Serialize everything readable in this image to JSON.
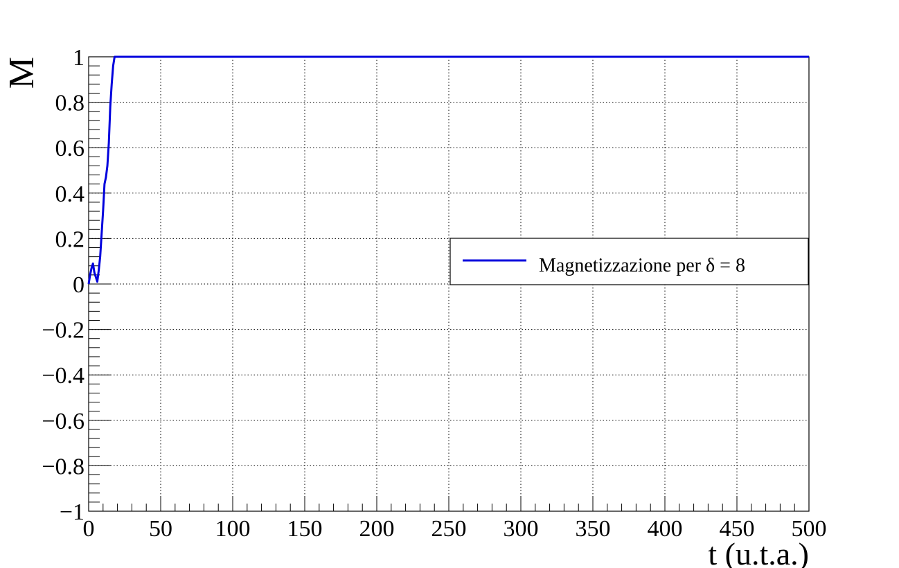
{
  "chart_data": {
    "type": "line",
    "xlabel": "t (u.t.a.)",
    "ylabel": "M",
    "xlim": [
      0,
      500
    ],
    "ylim": [
      -1,
      1
    ],
    "grid": true,
    "grid_style": "dotted",
    "legend_position": "right-middle",
    "x_ticks": [
      0,
      50,
      100,
      150,
      200,
      250,
      300,
      350,
      400,
      450,
      500
    ],
    "x_tick_labels": [
      "0",
      "50",
      "100",
      "150",
      "200",
      "250",
      "300",
      "350",
      "400",
      "450",
      "500"
    ],
    "y_ticks": [
      -1,
      -0.8,
      -0.6,
      -0.4,
      -0.2,
      0,
      0.2,
      0.4,
      0.6,
      0.8,
      1
    ],
    "y_tick_labels": [
      "−1",
      "−0.8",
      "−0.6",
      "−0.4",
      "−0.2",
      "0",
      "0.2",
      "0.4",
      "0.6",
      "0.8",
      "1"
    ],
    "series": [
      {
        "name": "Magnetizzazione per δ = 8",
        "color": "#0000dd",
        "x": [
          0,
          1,
          2,
          3,
          4,
          5,
          6,
          7,
          8,
          9,
          10,
          11,
          12,
          13,
          14,
          15,
          16,
          17,
          18,
          20,
          50,
          100,
          150,
          200,
          250,
          300,
          350,
          400,
          450,
          500
        ],
        "y": [
          0.0,
          0.04,
          0.07,
          0.09,
          0.05,
          0.03,
          0.01,
          0.06,
          0.12,
          0.22,
          0.32,
          0.44,
          0.47,
          0.52,
          0.62,
          0.78,
          0.88,
          0.96,
          1.0,
          1.0,
          1.0,
          1.0,
          1.0,
          1.0,
          1.0,
          1.0,
          1.0,
          1.0,
          1.0,
          1.0
        ]
      }
    ]
  }
}
